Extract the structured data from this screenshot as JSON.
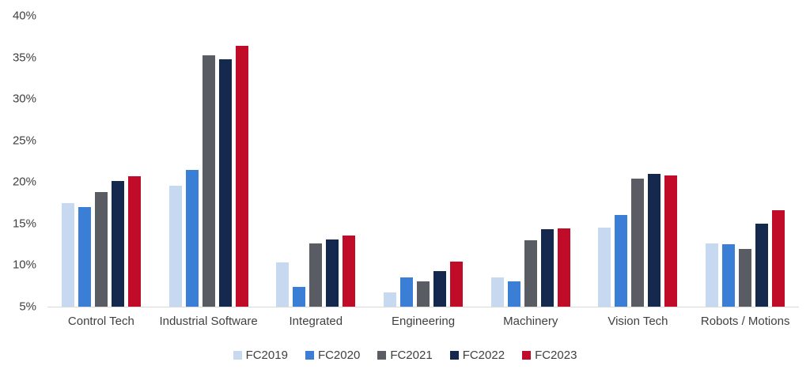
{
  "colors": {
    "axis_text": "#404040",
    "axis_line": "#d9d9d9",
    "background": "#ffffff"
  },
  "chart_data": {
    "type": "bar",
    "title": "",
    "xlabel": "",
    "ylabel": "",
    "categories": [
      "Control Tech",
      "Industrial Software",
      "Integrated",
      "Engineering",
      "Machinery",
      "Vision Tech",
      "Robots / Motions"
    ],
    "series": [
      {
        "name": "FC2019",
        "color": "#c6d9f1",
        "values": [
          17.5,
          19.6,
          10.3,
          6.7,
          8.5,
          14.5,
          12.6
        ]
      },
      {
        "name": "FC2020",
        "color": "#3a7fd5",
        "values": [
          17.0,
          21.5,
          7.4,
          8.5,
          8.0,
          16.0,
          12.5
        ]
      },
      {
        "name": "FC2021",
        "color": "#595c62",
        "values": [
          18.8,
          35.2,
          12.6,
          8.0,
          13.0,
          20.4,
          11.9
        ]
      },
      {
        "name": "FC2022",
        "color": "#15294e",
        "values": [
          20.1,
          34.8,
          13.1,
          9.3,
          14.3,
          21.0,
          15.0
        ]
      },
      {
        "name": "FC2023",
        "color": "#c00b29",
        "values": [
          20.7,
          36.4,
          13.6,
          10.4,
          14.4,
          20.8,
          16.6
        ]
      }
    ],
    "ylim": [
      5,
      40
    ],
    "ytick_step": 5,
    "ytick_suffix": "%",
    "yticks": [
      "5%",
      "10%",
      "15%",
      "20%",
      "25%",
      "30%",
      "35%",
      "40%"
    ],
    "grid": false,
    "legend_position": "bottom",
    "legend_labels": [
      "FC2019",
      "FC2020",
      "FC2021",
      "FC2022",
      "FC2023"
    ]
  }
}
